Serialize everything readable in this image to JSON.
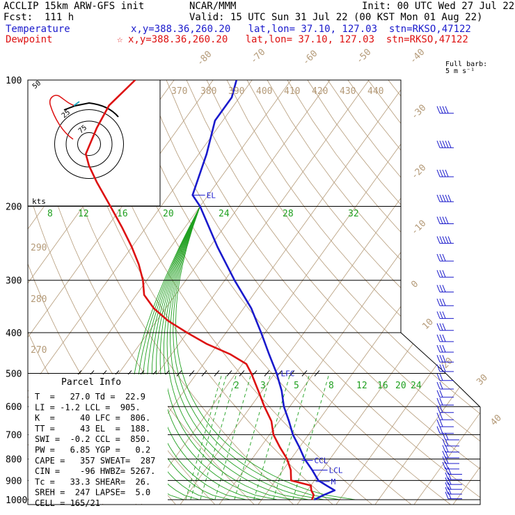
{
  "header": {
    "model": "ACCLIP 15km ARW-GFS init",
    "org": "NCAR/MMM",
    "init": "Init: 00 UTC Wed 27 Jul 22",
    "fcst": "Fcst:  111 h",
    "valid": "Valid: 15 UTC Sun 31 Jul 22 (00 KST Mon 01 Aug 22)",
    "temp_label": "Temperature",
    "temp_loc": "x,y=388.36,260.20   lat,lon= 37.10, 127.03  stn=RKSO,47122",
    "dew_label": "Dewpoint",
    "dew_star": "☆",
    "dew_loc": "x,y=388.36,260.20   lat,lon= 37.10, 127.03  stn=RKSO,47122"
  },
  "colors": {
    "temperature": "#1a1acc",
    "dewpoint": "#dd1111",
    "theta": "#b49a78",
    "mixing_ratio": "#20a020",
    "barbs": "#1a1acc"
  },
  "chart_data": {
    "type": "line",
    "diagram": "skew-T log-p",
    "pressure_levels": [
      100,
      200,
      300,
      400,
      500,
      600,
      700,
      800,
      900,
      1000
    ],
    "isotherm_labels": [
      "-80",
      "-70",
      "-60",
      "-50",
      "-40",
      "-30",
      "-20",
      "-10",
      "0",
      "10",
      "20",
      "30",
      "40"
    ],
    "theta_labels": [
      "370",
      "380",
      "390",
      "400",
      "410",
      "420",
      "430",
      "440",
      "290",
      "280",
      "270"
    ],
    "mixing_ratio_labels_upper": [
      "8",
      "12",
      "16",
      "20",
      "24",
      "28",
      "32"
    ],
    "mixing_ratio_labels_lower": [
      "2",
      "3",
      "5",
      "8",
      "12",
      "16",
      "20",
      "24"
    ],
    "series": [
      {
        "name": "Temperature",
        "p": [
          1000,
          975,
          950,
          925,
          900,
          850,
          800,
          750,
          700,
          650,
          600,
          550,
          500,
          450,
          400,
          350,
          300,
          250,
          200,
          188,
          150,
          125,
          110,
          100
        ],
        "t": [
          23.5,
          25,
          27,
          24,
          21,
          17.5,
          13.5,
          10,
          6,
          2.5,
          -1.5,
          -5,
          -9.5,
          -15,
          -21,
          -28,
          -37.5,
          -48,
          -60,
          -64,
          -68,
          -72,
          -72,
          -74
        ]
      },
      {
        "name": "Dewpoint",
        "p": [
          1000,
          975,
          950,
          925,
          900,
          850,
          800,
          750,
          700,
          650,
          600,
          550,
          500,
          475,
          450,
          425,
          400,
          375,
          350,
          325,
          300,
          275,
          250,
          225,
          200,
          175,
          160,
          150,
          130,
          115,
          100
        ],
        "t": [
          22.9,
          22.5,
          21,
          20,
          14,
          12,
          9,
          5,
          1,
          -2,
          -6.5,
          -11,
          -16,
          -19,
          -25,
          -33,
          -40,
          -47,
          -53,
          -58,
          -61,
          -65,
          -70,
          -76,
          -83,
          -91,
          -96,
          -99,
          -101,
          -102,
          -100
        ]
      }
    ],
    "annotations": [
      "EL",
      "LFC",
      "CCL",
      "LCL",
      "M"
    ],
    "winds_unit": "kts",
    "barb_legend": "Full barb:\n5 m s⁻¹",
    "hodograph": {
      "ring_labels": [
        "50",
        "25",
        "75"
      ],
      "unit": "kts"
    }
  },
  "parcel_info": {
    "title": "Parcel Info",
    "rows": [
      "T  =   27.0 Td =  22.9",
      "LI = -1.2 LCL =  905.",
      "K  =     40 LFC =  806.",
      "TT =     43 EL  =  188.",
      "SWI =  -0.2 CCL =  850.",
      "PW =   6.85 YGP =   0.2",
      "CAPE =   357 SWEAT=  287",
      "CIN =    -96 HWBZ= 5267.",
      "Tc =   33.3 SHEAR=  26.",
      "SREH =  247 LAPSE=  5.0",
      "CELL = 165/21"
    ]
  }
}
